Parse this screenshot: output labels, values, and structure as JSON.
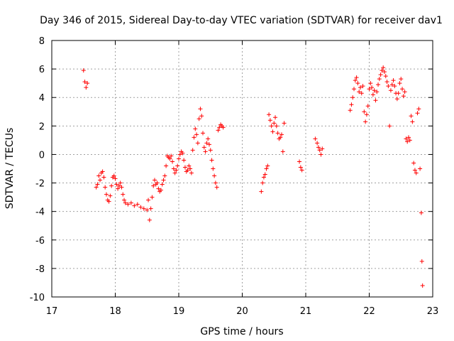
{
  "chart_data": {
    "type": "scatter",
    "title": "Day 346 of 2015, Sidereal Day-to-day VTEC variation (SDTVAR) for receiver dav1",
    "xlabel": "GPS time / hours",
    "ylabel": "SDTVAR / TECUs",
    "xlim": [
      17,
      23
    ],
    "ylim": [
      -10,
      8
    ],
    "xticks": [
      "17",
      "18",
      "19",
      "20",
      "21",
      "22",
      "23"
    ],
    "yticks": [
      "-10",
      "-8",
      "-6",
      "-4",
      "-2",
      "0",
      "2",
      "4",
      "6",
      "8"
    ],
    "grid": true,
    "marker": "+",
    "color": "#ff0000",
    "series": [
      {
        "name": "SDTVAR",
        "points": [
          [
            17.5,
            5.9
          ],
          [
            17.52,
            5.1
          ],
          [
            17.54,
            4.7
          ],
          [
            17.56,
            5.0
          ],
          [
            17.7,
            -2.3
          ],
          [
            17.72,
            -2.1
          ],
          [
            17.74,
            -1.5
          ],
          [
            17.76,
            -1.8
          ],
          [
            17.78,
            -1.3
          ],
          [
            17.8,
            -1.2
          ],
          [
            17.82,
            -1.6
          ],
          [
            17.84,
            -2.3
          ],
          [
            17.86,
            -2.8
          ],
          [
            17.88,
            -3.2
          ],
          [
            17.9,
            -3.3
          ],
          [
            17.92,
            -2.9
          ],
          [
            17.94,
            -2.2
          ],
          [
            17.96,
            -1.6
          ],
          [
            17.98,
            -1.5
          ],
          [
            18.0,
            -1.7
          ],
          [
            18.02,
            -2.1
          ],
          [
            18.04,
            -2.4
          ],
          [
            18.06,
            -2.2
          ],
          [
            18.08,
            -2.0
          ],
          [
            18.1,
            -2.3
          ],
          [
            18.12,
            -2.8
          ],
          [
            18.14,
            -3.2
          ],
          [
            18.16,
            -3.4
          ],
          [
            18.2,
            -3.5
          ],
          [
            18.25,
            -3.4
          ],
          [
            18.3,
            -3.6
          ],
          [
            18.35,
            -3.5
          ],
          [
            18.4,
            -3.7
          ],
          [
            18.45,
            -3.8
          ],
          [
            18.5,
            -3.9
          ],
          [
            18.52,
            -3.2
          ],
          [
            18.54,
            -4.6
          ],
          [
            18.56,
            -3.8
          ],
          [
            18.58,
            -3.0
          ],
          [
            18.6,
            -2.2
          ],
          [
            18.62,
            -1.8
          ],
          [
            18.64,
            -2.1
          ],
          [
            18.66,
            -2.0
          ],
          [
            18.68,
            -2.4
          ],
          [
            18.7,
            -2.6
          ],
          [
            18.72,
            -2.5
          ],
          [
            18.74,
            -2.1
          ],
          [
            18.76,
            -1.8
          ],
          [
            18.78,
            -1.5
          ],
          [
            18.8,
            -0.8
          ],
          [
            18.82,
            -0.1
          ],
          [
            18.84,
            -0.2
          ],
          [
            18.86,
            -0.3
          ],
          [
            18.88,
            -0.1
          ],
          [
            18.9,
            -0.5
          ],
          [
            18.92,
            -1.0
          ],
          [
            18.94,
            -1.3
          ],
          [
            18.96,
            -1.1
          ],
          [
            18.98,
            -0.8
          ],
          [
            19.0,
            -0.3
          ],
          [
            19.02,
            0.0
          ],
          [
            19.04,
            0.2
          ],
          [
            19.06,
            0.1
          ],
          [
            19.08,
            -0.4
          ],
          [
            19.1,
            -0.9
          ],
          [
            19.12,
            -1.2
          ],
          [
            19.14,
            -1.1
          ],
          [
            19.16,
            -0.8
          ],
          [
            19.18,
            -1.0
          ],
          [
            19.2,
            -1.3
          ],
          [
            19.22,
            0.3
          ],
          [
            19.24,
            1.2
          ],
          [
            19.26,
            1.8
          ],
          [
            19.28,
            1.4
          ],
          [
            19.3,
            0.8
          ],
          [
            19.32,
            2.5
          ],
          [
            19.34,
            3.2
          ],
          [
            19.36,
            2.7
          ],
          [
            19.38,
            1.5
          ],
          [
            19.4,
            0.5
          ],
          [
            19.42,
            0.2
          ],
          [
            19.44,
            0.8
          ],
          [
            19.46,
            1.1
          ],
          [
            19.48,
            0.7
          ],
          [
            19.5,
            0.3
          ],
          [
            19.52,
            -0.4
          ],
          [
            19.54,
            -1.0
          ],
          [
            19.56,
            -1.5
          ],
          [
            19.58,
            -2.0
          ],
          [
            19.6,
            -2.3
          ],
          [
            19.62,
            1.7
          ],
          [
            19.64,
            1.9
          ],
          [
            19.66,
            2.1
          ],
          [
            19.68,
            2.0
          ],
          [
            19.7,
            1.9
          ],
          [
            20.3,
            -2.6
          ],
          [
            20.32,
            -2.0
          ],
          [
            20.34,
            -1.6
          ],
          [
            20.36,
            -1.4
          ],
          [
            20.38,
            -1.0
          ],
          [
            20.4,
            -0.8
          ],
          [
            20.42,
            2.8
          ],
          [
            20.44,
            2.4
          ],
          [
            20.46,
            2.0
          ],
          [
            20.48,
            1.6
          ],
          [
            20.5,
            2.2
          ],
          [
            20.52,
            2.6
          ],
          [
            20.54,
            2.0
          ],
          [
            20.56,
            1.5
          ],
          [
            20.58,
            1.1
          ],
          [
            20.6,
            1.2
          ],
          [
            20.62,
            1.4
          ],
          [
            20.64,
            0.2
          ],
          [
            20.66,
            2.2
          ],
          [
            20.9,
            -0.5
          ],
          [
            20.92,
            -0.9
          ],
          [
            20.94,
            -1.1
          ],
          [
            21.15,
            1.1
          ],
          [
            21.18,
            0.8
          ],
          [
            21.2,
            0.5
          ],
          [
            21.22,
            0.3
          ],
          [
            21.24,
            0.0
          ],
          [
            21.26,
            0.4
          ],
          [
            21.7,
            3.1
          ],
          [
            21.72,
            3.5
          ],
          [
            21.74,
            4.0
          ],
          [
            21.76,
            4.6
          ],
          [
            21.78,
            5.2
          ],
          [
            21.8,
            5.4
          ],
          [
            21.82,
            5.0
          ],
          [
            21.84,
            4.4
          ],
          [
            21.86,
            4.7
          ],
          [
            21.88,
            4.3
          ],
          [
            21.9,
            4.8
          ],
          [
            21.92,
            3.0
          ],
          [
            21.94,
            2.3
          ],
          [
            21.96,
            2.8
          ],
          [
            21.98,
            3.4
          ],
          [
            22.0,
            4.6
          ],
          [
            22.02,
            5.0
          ],
          [
            22.04,
            4.7
          ],
          [
            22.06,
            4.2
          ],
          [
            22.08,
            4.5
          ],
          [
            22.1,
            3.8
          ],
          [
            22.12,
            4.4
          ],
          [
            22.14,
            4.9
          ],
          [
            22.16,
            5.3
          ],
          [
            22.18,
            5.6
          ],
          [
            22.2,
            5.9
          ],
          [
            22.22,
            6.1
          ],
          [
            22.24,
            5.8
          ],
          [
            22.26,
            5.5
          ],
          [
            22.28,
            5.1
          ],
          [
            22.3,
            4.8
          ],
          [
            22.32,
            2.0
          ],
          [
            22.34,
            4.5
          ],
          [
            22.36,
            4.9
          ],
          [
            22.38,
            5.2
          ],
          [
            22.4,
            4.8
          ],
          [
            22.42,
            4.3
          ],
          [
            22.44,
            3.9
          ],
          [
            22.46,
            4.3
          ],
          [
            22.48,
            5.0
          ],
          [
            22.5,
            5.3
          ],
          [
            22.52,
            4.6
          ],
          [
            22.54,
            4.1
          ],
          [
            22.56,
            4.4
          ],
          [
            22.58,
            1.1
          ],
          [
            22.6,
            0.9
          ],
          [
            22.62,
            1.2
          ],
          [
            22.64,
            1.0
          ],
          [
            22.66,
            2.7
          ],
          [
            22.68,
            2.3
          ],
          [
            22.7,
            -0.6
          ],
          [
            22.72,
            -1.1
          ],
          [
            22.74,
            -1.3
          ],
          [
            22.76,
            2.9
          ],
          [
            22.78,
            3.2
          ],
          [
            22.8,
            -1.0
          ],
          [
            22.82,
            -4.1
          ],
          [
            22.83,
            -7.5
          ],
          [
            22.84,
            -9.2
          ]
        ]
      }
    ]
  }
}
